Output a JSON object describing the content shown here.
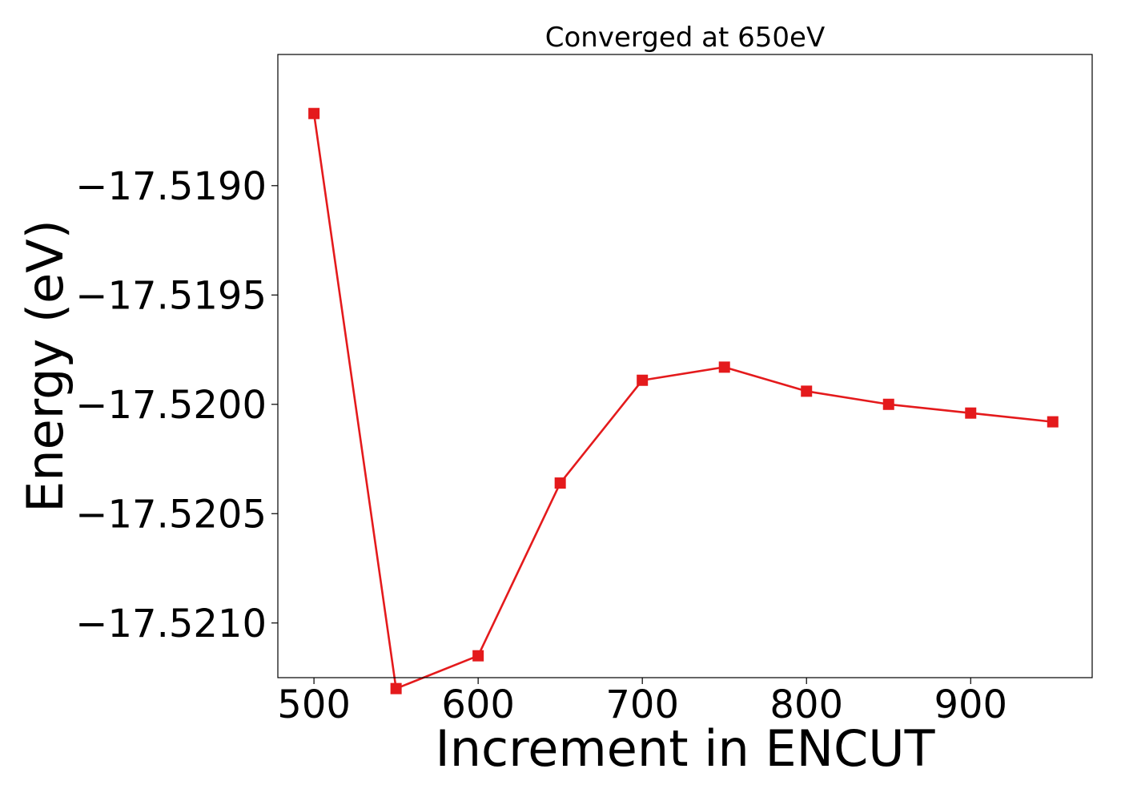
{
  "chart_data": {
    "type": "line",
    "title": "Converged at 650eV",
    "xlabel": "Increment in ENCUT",
    "ylabel": "Energy (eV)",
    "xlim": [
      478,
      974
    ],
    "ylim": [
      -17.52125,
      -17.5184
    ],
    "xticks": [
      500,
      600,
      700,
      800,
      900
    ],
    "xtick_labels": [
      "500",
      "600",
      "700",
      "800",
      "900"
    ],
    "yticks": [
      -17.519,
      -17.5195,
      -17.52,
      -17.5205,
      -17.521
    ],
    "ytick_labels": [
      "−17.5190",
      "−17.5195",
      "−17.5200",
      "−17.5205",
      "−17.5210"
    ],
    "grid": false,
    "series": [
      {
        "name": "",
        "color": "#e41a1c",
        "marker": "square",
        "x": [
          500,
          550,
          600,
          650,
          700,
          750,
          800,
          850,
          900,
          950
        ],
        "y": [
          -17.51867,
          -17.5213,
          -17.52115,
          -17.52036,
          -17.51989,
          -17.51983,
          -17.51994,
          -17.52,
          -17.52004,
          -17.52008
        ]
      }
    ]
  }
}
